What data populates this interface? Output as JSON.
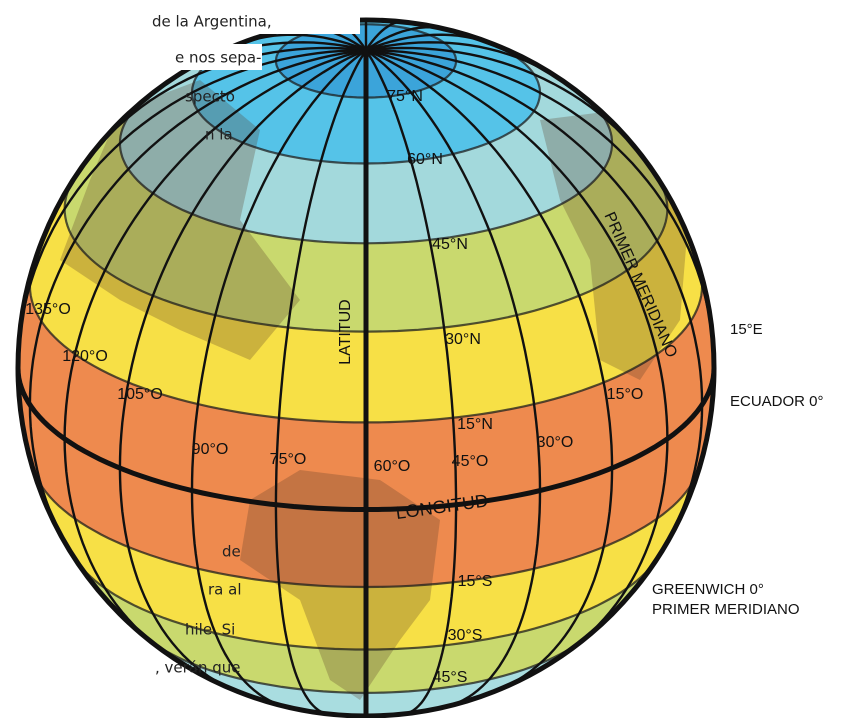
{
  "paragraph_top": [
    "de la Argentina,",
    "e nos sepa-",
    "specto",
    "n la"
  ],
  "paragraph_bottom": [
    "de",
    "ra al",
    "hile. Si",
    ", verán que"
  ],
  "globe": {
    "latitudes": [
      "75°N",
      "60°N",
      "45°N",
      "30°N",
      "15°N",
      "15°S",
      "30°S",
      "45°S"
    ],
    "longitudes": [
      "135°O",
      "120°O",
      "105°O",
      "90°O",
      "75°O",
      "60°O",
      "45°O",
      "30°O",
      "15°O"
    ],
    "axis_labels": {
      "latitude": "LATITUD",
      "longitude": "LONGITUD",
      "meridian": "PRIMER MERIDIANO"
    }
  },
  "side_labels": {
    "east": "15°E",
    "equator": "ECUADOR 0°",
    "greenwich": [
      "GREENWICH 0°",
      "PRIMER MERIDIANO"
    ]
  }
}
